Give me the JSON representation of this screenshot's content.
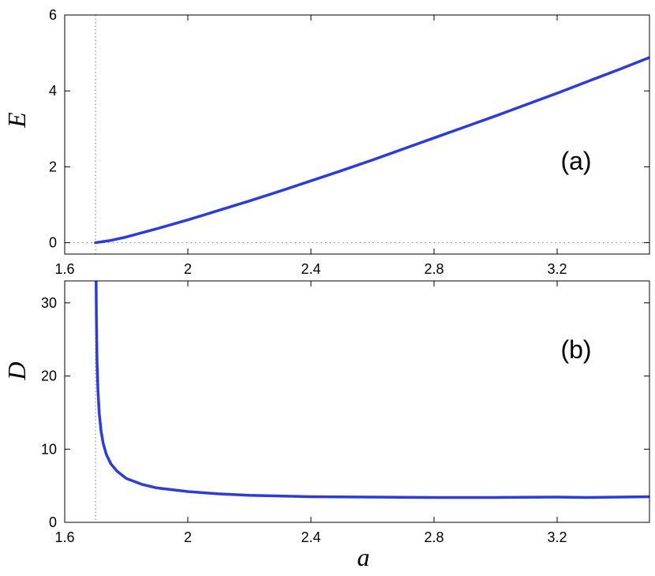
{
  "chart_data": [
    {
      "type": "line",
      "panel_label": "(a)",
      "xlabel": "",
      "ylabel": "E",
      "xlim": [
        1.6,
        3.5
      ],
      "ylim": [
        -0.3,
        6
      ],
      "xticks": [
        "1.6",
        "2",
        "2.4",
        "2.8",
        "3.2"
      ],
      "xtick_values": [
        1.6,
        2.0,
        2.4,
        2.8,
        3.2
      ],
      "yticks": [
        "0",
        "2",
        "4",
        "6"
      ],
      "ytick_values": [
        0,
        2,
        4,
        6
      ],
      "grid": false,
      "series_color": "#2a3ae8",
      "reference_lines": {
        "vertical_x": 1.7,
        "horizontal_y": 0
      },
      "series": [
        {
          "x": [
            1.7,
            1.75,
            1.8,
            1.85,
            1.9,
            2.0,
            2.1,
            2.2,
            2.3,
            2.4,
            2.5,
            2.6,
            2.7,
            2.8,
            2.9,
            3.0,
            3.1,
            3.2,
            3.3,
            3.4,
            3.5
          ],
          "y": [
            0.0,
            0.06,
            0.15,
            0.26,
            0.37,
            0.6,
            0.85,
            1.1,
            1.36,
            1.63,
            1.9,
            2.18,
            2.47,
            2.76,
            3.05,
            3.34,
            3.64,
            3.94,
            4.25,
            4.56,
            4.88
          ]
        }
      ]
    },
    {
      "type": "line",
      "panel_label": "(b)",
      "xlabel": "a",
      "ylabel": "D",
      "xlim": [
        1.6,
        3.5
      ],
      "ylim": [
        0,
        33
      ],
      "xticks": [
        "1.6",
        "2",
        "2.4",
        "2.8",
        "3.2"
      ],
      "xtick_values": [
        1.6,
        2.0,
        2.4,
        2.8,
        3.2
      ],
      "yticks": [
        "0",
        "10",
        "20",
        "30"
      ],
      "ytick_values": [
        0,
        10,
        20,
        30
      ],
      "grid": false,
      "series_color": "#2a3ae8",
      "reference_lines": {
        "vertical_x": 1.7
      },
      "series": [
        {
          "x": [
            1.702,
            1.703,
            1.705,
            1.708,
            1.712,
            1.718,
            1.725,
            1.735,
            1.75,
            1.77,
            1.8,
            1.85,
            1.9,
            2.0,
            2.1,
            2.2,
            2.4,
            2.6,
            2.8,
            3.0,
            3.2,
            3.3,
            3.4,
            3.5
          ],
          "y": [
            33,
            28,
            22,
            18,
            15,
            12.5,
            10.8,
            9.3,
            8.0,
            7.0,
            6.0,
            5.2,
            4.7,
            4.2,
            3.9,
            3.7,
            3.5,
            3.45,
            3.4,
            3.4,
            3.45,
            3.4,
            3.45,
            3.5
          ]
        }
      ]
    }
  ]
}
